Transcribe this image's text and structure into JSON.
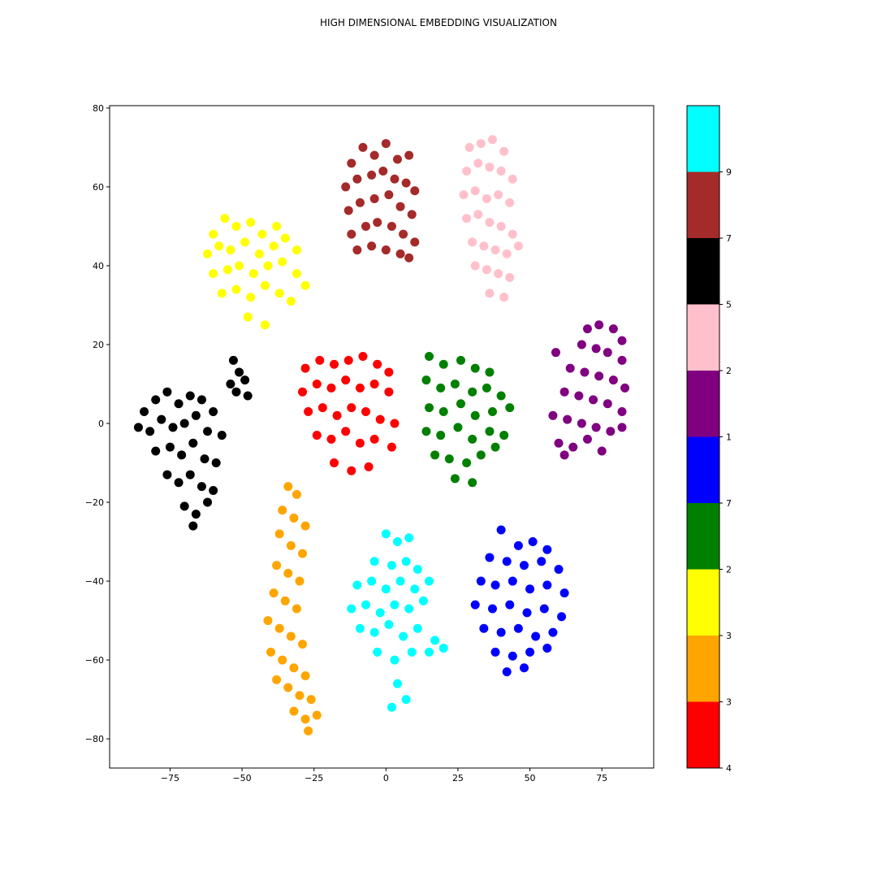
{
  "chart_data": {
    "type": "scatter",
    "title": "HIGH DIMENSIONAL EMBEDDING VISUALIZATION",
    "xlim": [
      -96,
      93
    ],
    "ylim": [
      -87.4,
      80.6
    ],
    "xticks": [
      {
        "value": -75,
        "label": "−75"
      },
      {
        "value": -50,
        "label": "−50"
      },
      {
        "value": -25,
        "label": "−25"
      },
      0,
      25,
      50,
      75
    ],
    "yticks": [
      {
        "value": -80,
        "label": "−80"
      },
      {
        "value": -60,
        "label": "−60"
      },
      {
        "value": -40,
        "label": "−40"
      },
      {
        "value": -20,
        "label": "−20"
      },
      0,
      20,
      40,
      60,
      80
    ],
    "series": [
      {
        "color": "#a52a2a",
        "x": [
          -12,
          -8,
          -4,
          0,
          4,
          8,
          -14,
          -10,
          -5,
          -1,
          3,
          7,
          10,
          -13,
          -9,
          -4,
          1,
          5,
          9,
          -12,
          -7,
          -3,
          2,
          6,
          10,
          -10,
          -5,
          0,
          5,
          8
        ],
        "values": [
          66,
          70,
          68,
          71,
          67,
          68,
          60,
          62,
          63,
          64,
          62,
          61,
          59,
          54,
          56,
          57,
          58,
          55,
          53,
          48,
          50,
          51,
          50,
          48,
          46,
          44,
          45,
          44,
          43,
          42
        ]
      },
      {
        "color": "#ffc0cb",
        "x": [
          29,
          33,
          37,
          41,
          28,
          32,
          36,
          40,
          44,
          27,
          31,
          35,
          39,
          43,
          28,
          32,
          36,
          40,
          44,
          30,
          34,
          38,
          42,
          46,
          31,
          35,
          39,
          43,
          36,
          41
        ],
        "values": [
          70,
          71,
          72,
          69,
          64,
          66,
          65,
          64,
          62,
          58,
          59,
          57,
          58,
          56,
          52,
          53,
          51,
          50,
          48,
          46,
          45,
          44,
          43,
          45,
          40,
          39,
          38,
          37,
          33,
          32
        ]
      },
      {
        "color": "#ffff00",
        "x": [
          -60,
          -56,
          -52,
          -47,
          -43,
          -38,
          -62,
          -58,
          -54,
          -49,
          -44,
          -39,
          -35,
          -31,
          -60,
          -55,
          -51,
          -46,
          -41,
          -36,
          -31,
          -28,
          -57,
          -52,
          -47,
          -42,
          -37,
          -33,
          -48,
          -42
        ],
        "values": [
          48,
          52,
          50,
          51,
          48,
          50,
          43,
          45,
          44,
          46,
          43,
          45,
          47,
          44,
          38,
          39,
          40,
          38,
          40,
          41,
          38,
          35,
          33,
          34,
          32,
          35,
          33,
          31,
          27,
          25
        ]
      },
      {
        "color": "#000000",
        "x": [
          -84,
          -80,
          -76,
          -72,
          -68,
          -64,
          -60,
          -86,
          -82,
          -78,
          -74,
          -70,
          -66,
          -62,
          -57,
          -80,
          -75,
          -71,
          -67,
          -63,
          -59,
          -76,
          -72,
          -68,
          -64,
          -60,
          -70,
          -66,
          -62,
          -67,
          -53,
          -51,
          -54,
          -49,
          -52,
          -48
        ],
        "values": [
          3,
          6,
          8,
          5,
          7,
          6,
          3,
          -1,
          -2,
          1,
          -1,
          0,
          2,
          -2,
          -3,
          -7,
          -6,
          -8,
          -5,
          -9,
          -10,
          -13,
          -15,
          -13,
          -16,
          -17,
          -21,
          -23,
          -20,
          -26,
          16,
          13,
          10,
          11,
          8,
          7
        ]
      },
      {
        "color": "#ff0000",
        "x": [
          -28,
          -23,
          -18,
          -13,
          -8,
          -3,
          1,
          -29,
          -24,
          -19,
          -14,
          -9,
          -4,
          1,
          -27,
          -22,
          -17,
          -12,
          -7,
          -2,
          3,
          -24,
          -19,
          -14,
          -9,
          -4,
          2,
          -18,
          -12,
          -6
        ],
        "values": [
          14,
          16,
          15,
          16,
          17,
          15,
          13,
          8,
          10,
          9,
          11,
          9,
          10,
          8,
          3,
          4,
          2,
          4,
          3,
          1,
          0,
          -3,
          -4,
          -2,
          -5,
          -4,
          -6,
          -10,
          -12,
          -11
        ]
      },
      {
        "color": "#008000",
        "x": [
          15,
          20,
          26,
          31,
          36,
          14,
          19,
          24,
          30,
          35,
          40,
          15,
          20,
          26,
          31,
          37,
          43,
          14,
          19,
          25,
          30,
          36,
          41,
          17,
          22,
          28,
          33,
          38,
          24,
          30
        ],
        "values": [
          17,
          15,
          16,
          14,
          13,
          11,
          9,
          10,
          8,
          9,
          7,
          4,
          3,
          5,
          2,
          3,
          4,
          -2,
          -3,
          -1,
          -4,
          -2,
          -3,
          -8,
          -9,
          -10,
          -8,
          -6,
          -14,
          -15
        ]
      },
      {
        "color": "#800080",
        "x": [
          70,
          74,
          79,
          82,
          68,
          73,
          77,
          82,
          59,
          64,
          69,
          74,
          79,
          83,
          62,
          67,
          72,
          77,
          82,
          58,
          63,
          68,
          73,
          78,
          82,
          60,
          65,
          70,
          75,
          62
        ],
        "values": [
          24,
          25,
          24,
          21,
          20,
          19,
          18,
          16,
          18,
          14,
          13,
          12,
          11,
          9,
          8,
          7,
          6,
          5,
          3,
          2,
          1,
          0,
          -1,
          -2,
          -1,
          -5,
          -6,
          -4,
          -7,
          -8
        ]
      },
      {
        "color": "#ffa500",
        "x": [
          -34,
          -31,
          -36,
          -32,
          -28,
          -37,
          -33,
          -29,
          -38,
          -34,
          -30,
          -39,
          -35,
          -31,
          -41,
          -37,
          -33,
          -29,
          -40,
          -36,
          -32,
          -28,
          -38,
          -34,
          -30,
          -26,
          -32,
          -28,
          -24,
          -27
        ],
        "values": [
          -16,
          -18,
          -22,
          -24,
          -26,
          -28,
          -31,
          -33,
          -36,
          -38,
          -40,
          -43,
          -45,
          -47,
          -50,
          -52,
          -54,
          -56,
          -58,
          -60,
          -62,
          -64,
          -65,
          -67,
          -69,
          -70,
          -73,
          -75,
          -74,
          -78
        ]
      },
      {
        "color": "#00ffff",
        "x": [
          0,
          4,
          8,
          -4,
          2,
          7,
          11,
          -10,
          -5,
          0,
          5,
          10,
          15,
          -12,
          -7,
          -2,
          3,
          8,
          13,
          -9,
          -4,
          1,
          6,
          11,
          17,
          -3,
          3,
          9,
          15,
          20,
          4,
          7,
          2
        ],
        "values": [
          -28,
          -30,
          -29,
          -35,
          -36,
          -35,
          -37,
          -41,
          -40,
          -42,
          -40,
          -42,
          -40,
          -47,
          -46,
          -48,
          -46,
          -47,
          -45,
          -52,
          -53,
          -51,
          -54,
          -52,
          -55,
          -58,
          -60,
          -58,
          -58,
          -57,
          -66,
          -70,
          -72
        ]
      },
      {
        "color": "#0000ff",
        "x": [
          40,
          46,
          51,
          56,
          36,
          42,
          48,
          54,
          60,
          33,
          38,
          44,
          50,
          56,
          62,
          31,
          37,
          43,
          49,
          55,
          61,
          34,
          40,
          46,
          52,
          58,
          38,
          44,
          50,
          56,
          42,
          48
        ],
        "values": [
          -27,
          -31,
          -30,
          -32,
          -34,
          -35,
          -36,
          -35,
          -37,
          -40,
          -41,
          -40,
          -42,
          -41,
          -43,
          -46,
          -47,
          -46,
          -48,
          -47,
          -49,
          -52,
          -53,
          -52,
          -54,
          -53,
          -58,
          -59,
          -58,
          -57,
          -63,
          -62
        ]
      }
    ],
    "colorbar": {
      "colors": [
        "#ff0000",
        "#ffa500",
        "#ffff00",
        "#008000",
        "#0000ff",
        "#800080",
        "#ffc0cb",
        "#000000",
        "#a52a2a",
        "#00ffff"
      ],
      "lim": [
        0,
        10
      ],
      "ticks": [
        {
          "value": 0,
          "label": "4"
        },
        {
          "value": 1,
          "label": "3"
        },
        {
          "value": 2,
          "label": "3"
        },
        {
          "value": 3,
          "label": "2"
        },
        {
          "value": 4,
          "label": "7"
        },
        {
          "value": 5,
          "label": "1"
        },
        {
          "value": 6,
          "label": "2"
        },
        {
          "value": 7,
          "label": "5"
        },
        {
          "value": 8,
          "label": "7"
        },
        {
          "value": 9,
          "label": "9"
        }
      ]
    }
  }
}
